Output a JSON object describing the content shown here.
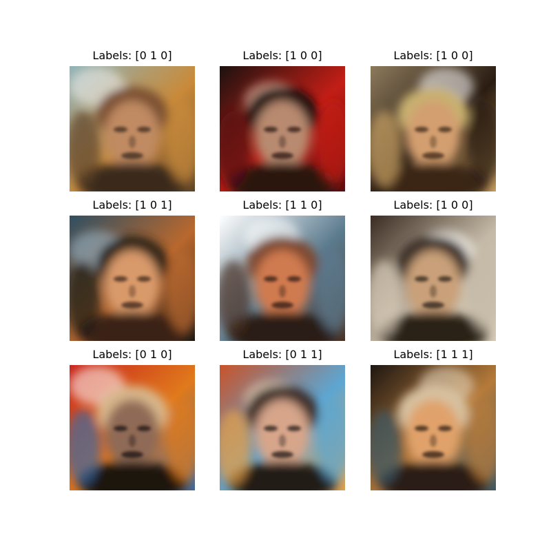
{
  "panels": [
    {
      "title": "Labels: [0 1 0]",
      "palette": {
        "bg1": "#8fb3b8",
        "bg2": "#c98a3a",
        "bg3": "#5e4326",
        "skin": "#c08a62",
        "shadow": "#3a2a1e",
        "hair": "#7a5030",
        "accent": "#f2f2f2"
      }
    },
    {
      "title": "Labels: [1 0 0]",
      "palette": {
        "bg1": "#1c120f",
        "bg2": "#c21e16",
        "bg3": "#5a0d12",
        "skin": "#b88a70",
        "shadow": "#2b1711",
        "hair": "#1a1110",
        "accent": "#e8c7b0"
      }
    },
    {
      "title": "Labels: [1 0 0]",
      "palette": {
        "bg1": "#8c7a5c",
        "bg2": "#2a1c12",
        "bg3": "#c8a062",
        "skin": "#d39f6f",
        "shadow": "#3a2616",
        "hair": "#c8b070",
        "accent": "#ffffff"
      }
    },
    {
      "title": "Labels: [1 0 1]",
      "palette": {
        "bg1": "#2f4f62",
        "bg2": "#b9682e",
        "bg3": "#1c1815",
        "skin": "#d99a6a",
        "shadow": "#3b2418",
        "hair": "#2a2019",
        "accent": "#9bbad0"
      }
    },
    {
      "title": "Labels: [1 1 0]",
      "palette": {
        "bg1": "#ffffff",
        "bg2": "#5b7b8e",
        "bg3": "#4a3124",
        "skin": "#d07a50",
        "shadow": "#2c1a14",
        "hair": "#7d4a32",
        "accent": "#ffffff"
      }
    },
    {
      "title": "Labels: [1 0 0]",
      "palette": {
        "bg1": "#3a2c22",
        "bg2": "#c4b9a6",
        "bg3": "#d9cdb9",
        "skin": "#c9a079",
        "shadow": "#2b2018",
        "hair": "#3a2e25",
        "accent": "#ffffff"
      }
    },
    {
      "title": "Labels: [0 1 0]",
      "palette": {
        "bg1": "#c8241c",
        "bg2": "#e07a1c",
        "bg3": "#3e6aa0",
        "skin": "#8f6a56",
        "shadow": "#1a1210",
        "hair": "#d8b68a",
        "accent": "#ffffff"
      }
    },
    {
      "title": "Labels: [0 1 1]",
      "palette": {
        "bg1": "#c9532a",
        "bg2": "#5da6d2",
        "bg3": "#e6a24a",
        "skin": "#d6a58a",
        "shadow": "#231a16",
        "hair": "#3a2c26",
        "accent": "#e9d6b4"
      }
    },
    {
      "title": "Labels: [1 1 1]",
      "palette": {
        "bg1": "#1e1712",
        "bg2": "#b57a3a",
        "bg3": "#3d5a66",
        "skin": "#e0a26a",
        "shadow": "#2c1c12",
        "hair": "#d7c1a0",
        "accent": "#f0e2c8"
      }
    }
  ]
}
